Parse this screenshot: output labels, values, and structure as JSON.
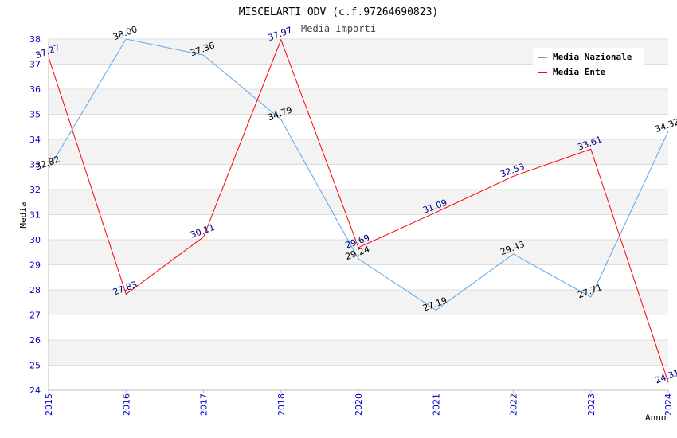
{
  "chart_data": {
    "type": "line",
    "title": "MISCELARTI ODV (c.f.97264690823)",
    "subtitle": "Media Importi",
    "xlabel": "Anno",
    "ylabel": "Media",
    "categories": [
      "2015",
      "2016",
      "2017",
      "2018",
      "2020",
      "2021",
      "2022",
      "2023",
      "2024"
    ],
    "ylim": [
      24,
      38
    ],
    "yticks": [
      24,
      25,
      26,
      27,
      28,
      29,
      30,
      31,
      32,
      33,
      34,
      35,
      36,
      37,
      38
    ],
    "grid": "horizontal bands",
    "legend_position": "top-right",
    "series": [
      {
        "name": "Media Nazionale",
        "color": "#5aa5e6",
        "label_color": "#000000",
        "values": [
          32.82,
          38.0,
          37.36,
          34.79,
          29.24,
          27.19,
          29.43,
          27.71,
          34.32
        ],
        "labels": [
          "32.82",
          "38.00",
          "37.36",
          "34.79",
          "29.24",
          "27.19",
          "29.43",
          "27.71",
          "34.32"
        ]
      },
      {
        "name": "Media Ente",
        "color": "#ff0000",
        "label_color": "#000080",
        "values": [
          37.27,
          27.83,
          30.11,
          37.97,
          29.69,
          31.09,
          32.53,
          33.61,
          24.31
        ],
        "labels": [
          "37.27",
          "27.83",
          "30.11",
          "37.97",
          "29.69",
          "31.09",
          "32.53",
          "33.61",
          "24.31"
        ]
      }
    ]
  },
  "colors": {
    "axis_tick_text": "#0000cc",
    "band": "#f3f3f3",
    "grid_line": "#dddddd"
  }
}
